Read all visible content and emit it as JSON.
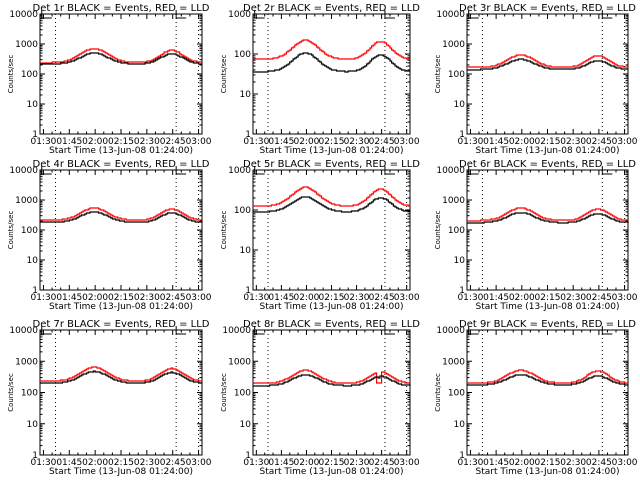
{
  "chart_data": {
    "type": "line",
    "legend_note": "BLACK = Events, RED = LLD",
    "x_ticks": [
      "01:30",
      "01:45",
      "02:00",
      "02:15",
      "02:30",
      "02:45",
      "03:00"
    ],
    "x_tick_minutes": [
      90,
      105,
      120,
      135,
      150,
      165,
      180
    ],
    "xlim_minutes": [
      88,
      182
    ],
    "xlabel": "Start Time (13-Jun-08 01:24:00)",
    "ylabel": "Counts/sec",
    "yscale": "log",
    "dotted_vlines_minutes": [
      97,
      167,
      180
    ],
    "bracket_markers_minutes": [
      89,
      167
    ],
    "series_colors": {
      "Events": "#000000",
      "LLD": "#ff0000"
    },
    "panels": [
      {
        "title": "Det 1r BLACK = Events, RED = LLD",
        "ylim": [
          1,
          10000
        ],
        "yticks": [
          "1",
          "10",
          "100",
          "1000",
          "10000"
        ],
        "events": {
          "base": 215,
          "peak1": 500,
          "peak2": 470
        },
        "lld": {
          "base": 240,
          "peak1": 700,
          "peak2": 620
        }
      },
      {
        "title": "Det 2r BLACK = Events, RED = LLD",
        "ylim": [
          1,
          1000
        ],
        "yticks": [
          "1",
          "10",
          "100",
          "1000"
        ],
        "events": {
          "base": 36,
          "peak1": 105,
          "peak2": 95
        },
        "lld": {
          "base": 73,
          "peak1": 220,
          "peak2": 205
        }
      },
      {
        "title": "Det 3r BLACK = Events, RED = LLD",
        "ylim": [
          1,
          10000
        ],
        "yticks": [
          "1",
          "10",
          "100",
          "1000",
          "10000"
        ],
        "events": {
          "base": 140,
          "peak1": 310,
          "peak2": 280
        },
        "lld": {
          "base": 165,
          "peak1": 430,
          "peak2": 400
        }
      },
      {
        "title": "Det 4r BLACK = Events, RED = LLD",
        "ylim": [
          1,
          10000
        ],
        "yticks": [
          "1",
          "10",
          "100",
          "1000",
          "10000"
        ],
        "events": {
          "base": 180,
          "peak1": 400,
          "peak2": 370
        },
        "lld": {
          "base": 210,
          "peak1": 540,
          "peak2": 490
        }
      },
      {
        "title": "Det 5r BLACK = Events, RED = LLD",
        "ylim": [
          1,
          1000
        ],
        "yticks": [
          "1",
          "10",
          "100",
          "1000"
        ],
        "events": {
          "base": 90,
          "peak1": 215,
          "peak2": 200
        },
        "lld": {
          "base": 125,
          "peak1": 370,
          "peak2": 330
        }
      },
      {
        "title": "Det 6r BLACK = Events, RED = LLD",
        "ylim": [
          1,
          10000
        ],
        "yticks": [
          "1",
          "10",
          "100",
          "1000",
          "10000"
        ],
        "events": {
          "base": 175,
          "peak1": 380,
          "peak2": 350
        },
        "lld": {
          "base": 205,
          "peak1": 540,
          "peak2": 490
        }
      },
      {
        "title": "Det 7r BLACK = Events, RED = LLD",
        "ylim": [
          1,
          10000
        ],
        "yticks": [
          "1",
          "10",
          "100",
          "1000",
          "10000"
        ],
        "events": {
          "base": 200,
          "peak1": 470,
          "peak2": 440
        },
        "lld": {
          "base": 230,
          "peak1": 640,
          "peak2": 590
        }
      },
      {
        "title": "Det 8r BLACK = Events, RED = LLD",
        "ylim": [
          1,
          10000
        ],
        "yticks": [
          "1",
          "10",
          "100",
          "1000",
          "10000"
        ],
        "events": {
          "base": 165,
          "peak1": 370,
          "peak2": 330
        },
        "lld": {
          "base": 195,
          "peak1": 510,
          "peak2": 470
        },
        "dip_minutes": 163,
        "dip_value": 200
      },
      {
        "title": "Det 9r BLACK = Events, RED = LLD",
        "ylim": [
          1,
          10000
        ],
        "yticks": [
          "1",
          "10",
          "100",
          "1000",
          "10000"
        ],
        "events": {
          "base": 175,
          "peak1": 370,
          "peak2": 340
        },
        "lld": {
          "base": 200,
          "peak1": 520,
          "peak2": 480
        }
      }
    ]
  }
}
